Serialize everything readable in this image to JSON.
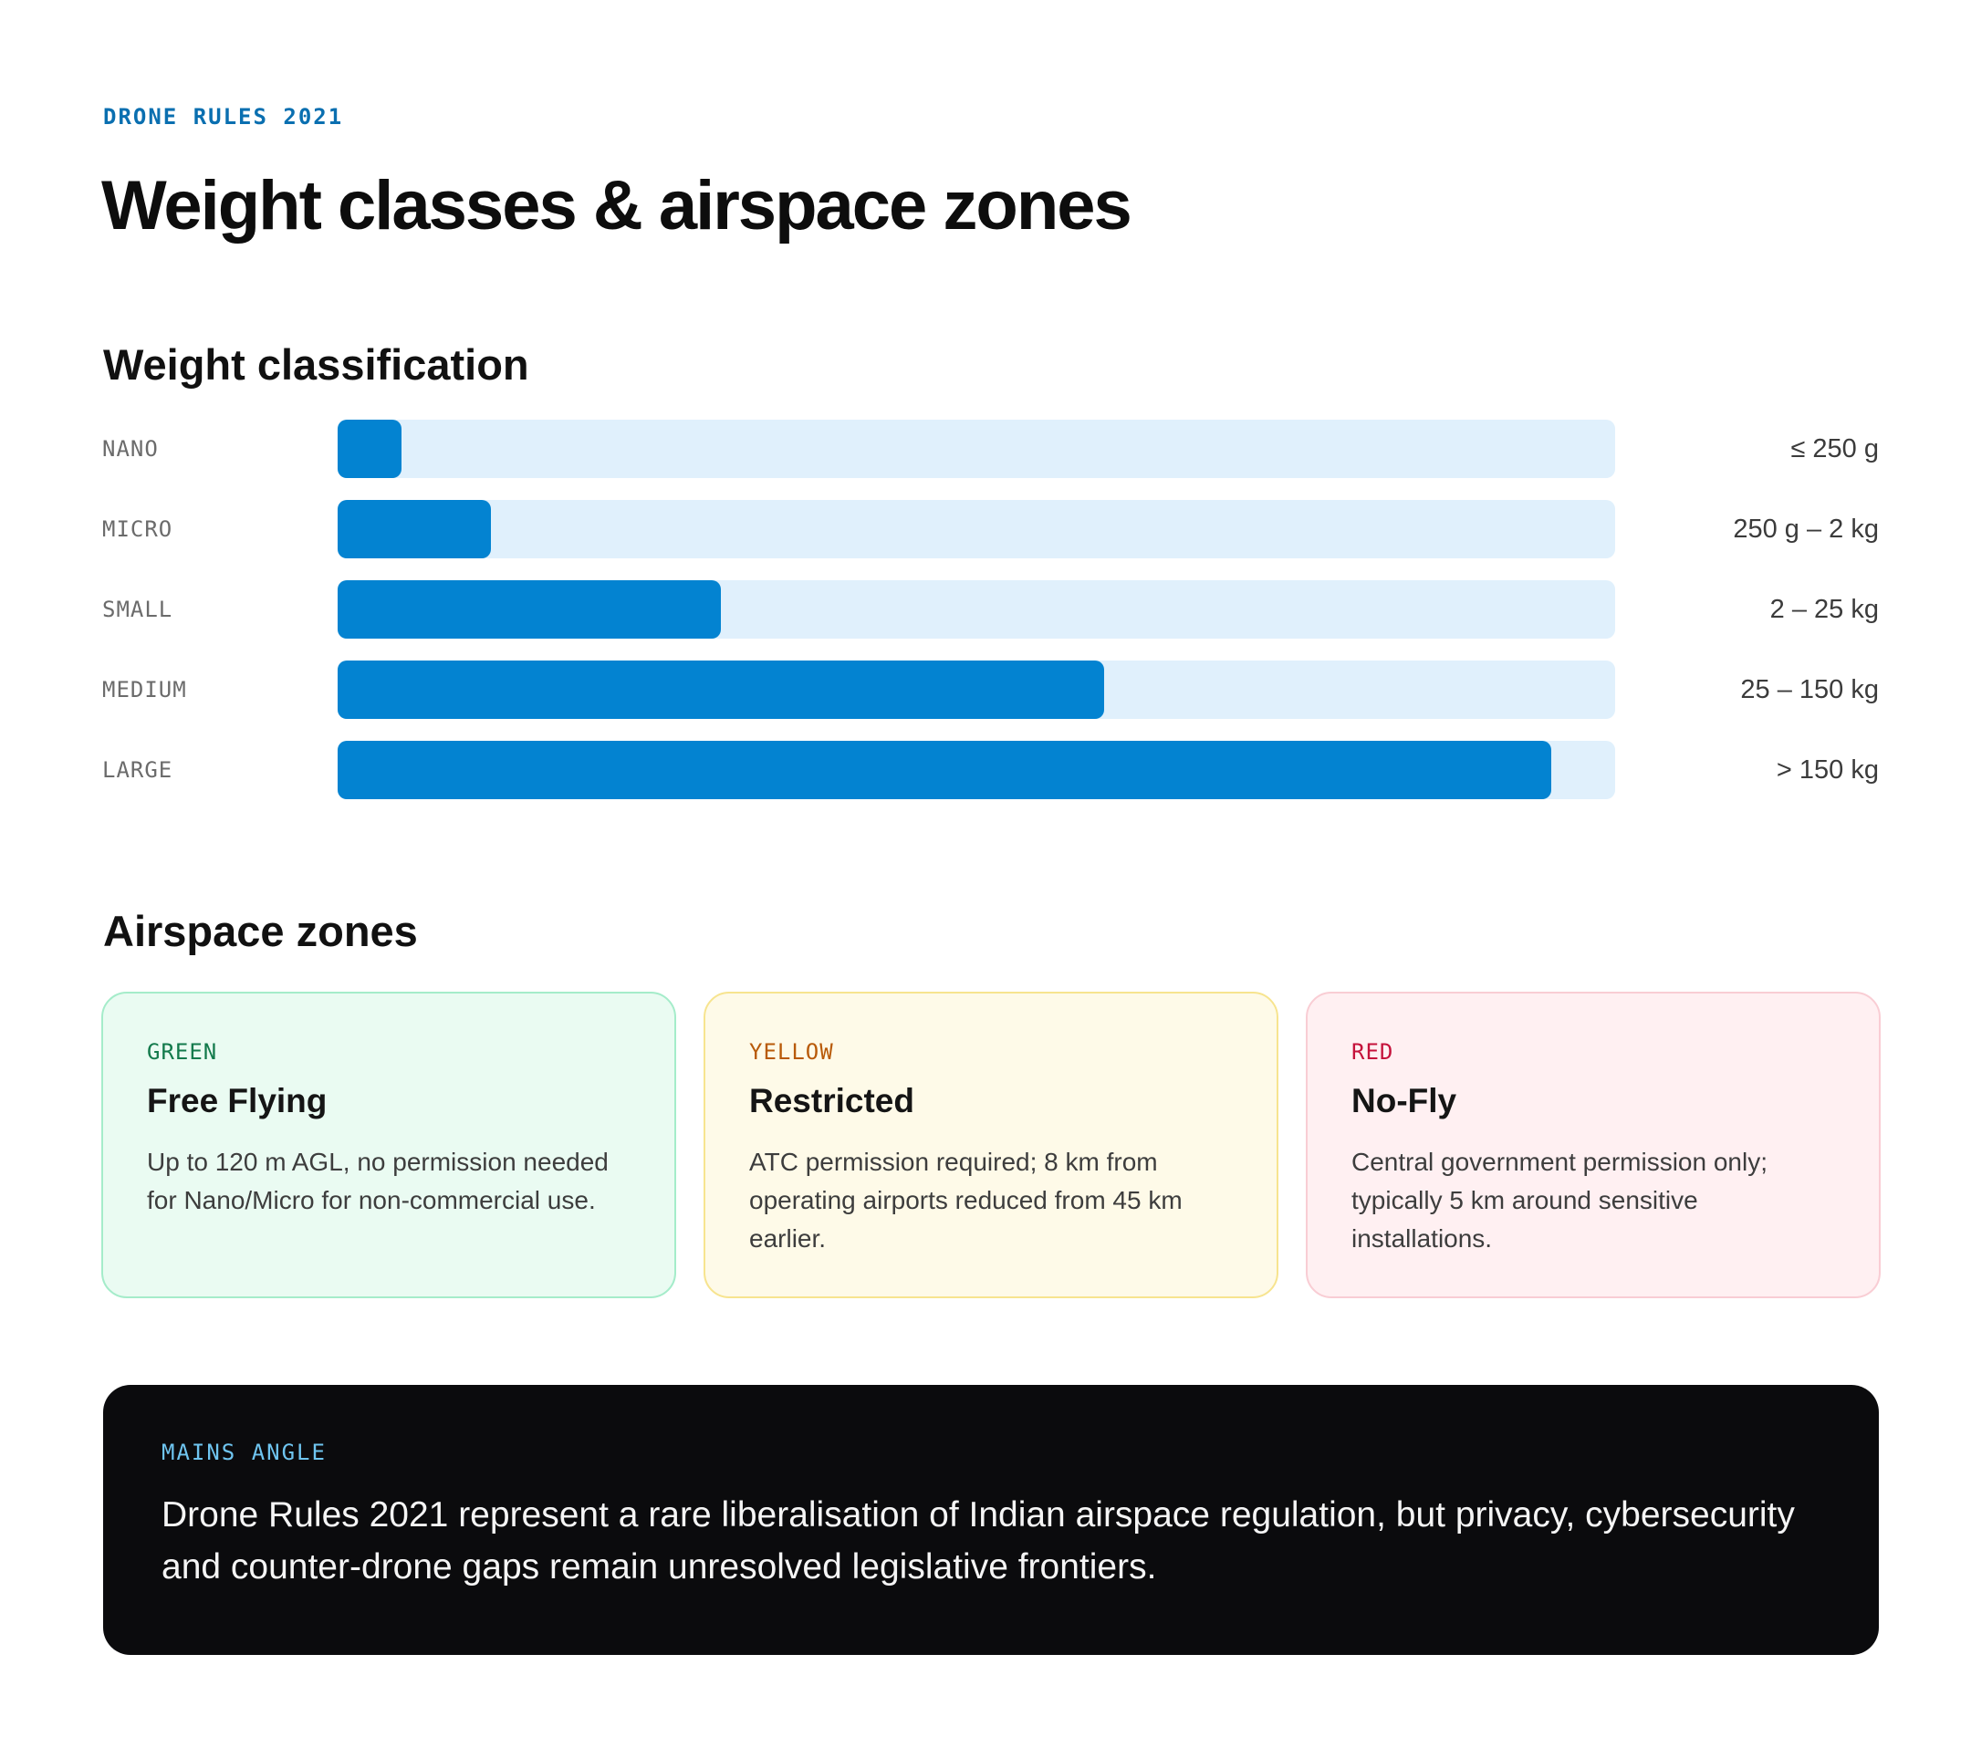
{
  "header": {
    "eyebrow": "DRONE RULES 2021",
    "title": "Weight classes & airspace zones"
  },
  "weight_section": {
    "title": "Weight classification"
  },
  "chart_data": {
    "type": "bar",
    "orientation": "horizontal",
    "title": "Weight classification",
    "categories": [
      "NANO",
      "MICRO",
      "SMALL",
      "MEDIUM",
      "LARGE"
    ],
    "values": [
      0.05,
      0.12,
      0.3,
      0.6,
      0.95
    ],
    "value_labels": [
      "≤ 250 g",
      "250 g – 2 kg",
      "2 – 25 kg",
      "25 – 150 kg",
      "> 150 kg"
    ],
    "xlim": [
      0,
      1
    ],
    "bar_color": "#0383d1",
    "track_color": "#e0f0fc",
    "grid": false
  },
  "zones_section": {
    "title": "Airspace zones",
    "zones": [
      {
        "tag": "GREEN",
        "name": "Free Flying",
        "description": "Up to 120 m AGL, no permission needed for Nano/Micro for non-commercial use.",
        "color": "#137a4c"
      },
      {
        "tag": "YELLOW",
        "name": "Restricted",
        "description": "ATC permission required; 8 km from operating airports reduced from 45 km earlier.",
        "color": "#b85a08"
      },
      {
        "tag": "RED",
        "name": "No-Fly",
        "description": "Central government permission only; typically 5 km around sensitive installations.",
        "color": "#c5123b"
      }
    ]
  },
  "callout": {
    "tag": "MAINS ANGLE",
    "text": "Drone Rules 2021 represent a rare liberalisation of Indian airspace regulation, but privacy, cybersecurity and counter-drone gaps remain unresolved legislative frontiers."
  }
}
